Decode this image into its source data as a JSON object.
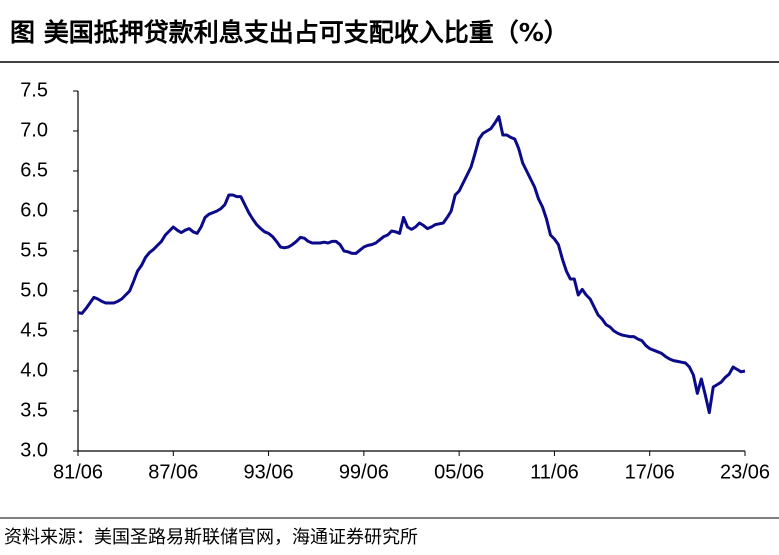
{
  "chart_data": {
    "type": "line",
    "title": "图  美国抵押贷款利息支出占可支配收入比重（%）",
    "source": "资料来源：美国圣路易斯联储官网，海通证券研究所",
    "categories": [
      "81/06",
      null,
      null,
      null,
      null,
      null,
      null,
      null,
      null,
      null,
      null,
      null,
      null,
      null,
      null,
      null,
      null,
      null,
      null,
      null,
      null,
      null,
      null,
      null,
      "87/06",
      null,
      null,
      null,
      null,
      null,
      null,
      null,
      null,
      null,
      null,
      null,
      null,
      null,
      null,
      null,
      null,
      null,
      null,
      null,
      null,
      null,
      null,
      null,
      "93/06",
      null,
      null,
      null,
      null,
      null,
      null,
      null,
      null,
      null,
      null,
      null,
      null,
      null,
      null,
      null,
      null,
      null,
      null,
      null,
      null,
      null,
      null,
      null,
      "99/06",
      null,
      null,
      null,
      null,
      null,
      null,
      null,
      null,
      null,
      null,
      null,
      null,
      null,
      null,
      null,
      null,
      null,
      null,
      null,
      null,
      null,
      null,
      null,
      "05/06",
      null,
      null,
      null,
      null,
      null,
      null,
      null,
      null,
      null,
      null,
      null,
      null,
      null,
      null,
      null,
      null,
      null,
      null,
      null,
      null,
      null,
      null,
      null,
      "11/06",
      null,
      null,
      null,
      null,
      null,
      null,
      null,
      null,
      null,
      null,
      null,
      null,
      null,
      null,
      null,
      null,
      null,
      null,
      null,
      null,
      null,
      null,
      null,
      "17/06",
      null,
      null,
      null,
      null,
      null,
      null,
      null,
      null,
      null,
      null,
      null,
      null,
      null,
      null,
      null,
      null,
      null,
      null,
      null,
      null,
      null,
      null,
      null,
      "23/06"
    ],
    "series": [
      {
        "color": "#0a0a8a",
        "values": [
          4.73,
          4.72,
          4.78,
          4.85,
          4.92,
          4.9,
          4.87,
          4.85,
          4.85,
          4.85,
          4.87,
          4.9,
          4.95,
          5.0,
          5.12,
          5.25,
          5.32,
          5.42,
          5.48,
          5.52,
          5.57,
          5.62,
          5.7,
          5.75,
          5.8,
          5.76,
          5.73,
          5.76,
          5.78,
          5.74,
          5.72,
          5.8,
          5.92,
          5.96,
          5.98,
          6.0,
          6.03,
          6.08,
          6.2,
          6.2,
          6.18,
          6.18,
          6.08,
          5.98,
          5.9,
          5.83,
          5.78,
          5.74,
          5.72,
          5.68,
          5.62,
          5.55,
          5.54,
          5.55,
          5.58,
          5.62,
          5.67,
          5.66,
          5.62,
          5.6,
          5.6,
          5.6,
          5.61,
          5.6,
          5.62,
          5.62,
          5.58,
          5.5,
          5.49,
          5.47,
          5.47,
          5.51,
          5.55,
          5.57,
          5.58,
          5.6,
          5.64,
          5.68,
          5.7,
          5.75,
          5.74,
          5.72,
          5.92,
          5.8,
          5.77,
          5.8,
          5.85,
          5.82,
          5.78,
          5.8,
          5.83,
          5.84,
          5.85,
          5.92,
          6.0,
          6.2,
          6.25,
          6.35,
          6.45,
          6.55,
          6.72,
          6.9,
          6.97,
          7.0,
          7.03,
          7.1,
          7.18,
          6.95,
          6.95,
          6.92,
          6.9,
          6.78,
          6.6,
          6.5,
          6.4,
          6.3,
          6.15,
          6.05,
          5.9,
          5.7,
          5.65,
          5.58,
          5.4,
          5.25,
          5.15,
          5.15,
          4.95,
          5.02,
          4.95,
          4.9,
          4.8,
          4.7,
          4.65,
          4.58,
          4.55,
          4.5,
          4.47,
          4.45,
          4.44,
          4.43,
          4.43,
          4.4,
          4.38,
          4.32,
          4.28,
          4.26,
          4.24,
          4.22,
          4.18,
          4.15,
          4.13,
          4.12,
          4.11,
          4.1,
          4.05,
          3.95,
          3.72,
          3.9,
          3.7,
          3.48,
          3.8,
          3.83,
          3.86,
          3.92,
          3.96,
          4.05,
          4.02,
          3.99,
          4.0
        ]
      }
    ],
    "ylim": [
      3,
      7.5
    ],
    "yticks": [
      {
        "value": 3,
        "label": "3.0"
      },
      3.5,
      {
        "value": 4,
        "label": "4.0"
      },
      4.5,
      {
        "value": 5,
        "label": "5.0"
      },
      5.5,
      {
        "value": 6,
        "label": "6.0"
      },
      6.5,
      {
        "value": 7,
        "label": "7.0"
      },
      7.5
    ],
    "grid": false
  }
}
